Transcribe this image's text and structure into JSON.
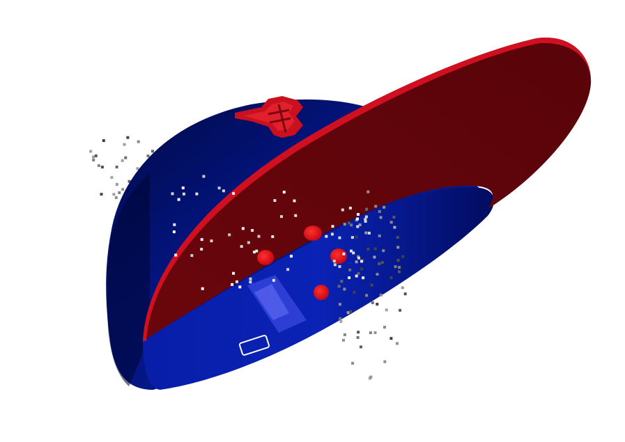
{
  "scene": {
    "subject": "3d-cap-render",
    "background_color": "#ffffff",
    "colors": {
      "crown_dark": "#000a44",
      "crown_mid": "#061a8f",
      "crown_light": "#1830c8",
      "brim_top": "#c8101e",
      "brim_under": "#5e0509",
      "logo": "#d6141e",
      "marker": "#e0101a",
      "point_light": "#e8e8e8",
      "point_dark": "#555555"
    },
    "icons": [
      "cap-logo-icon",
      "marker-dot",
      "label-frame"
    ]
  }
}
